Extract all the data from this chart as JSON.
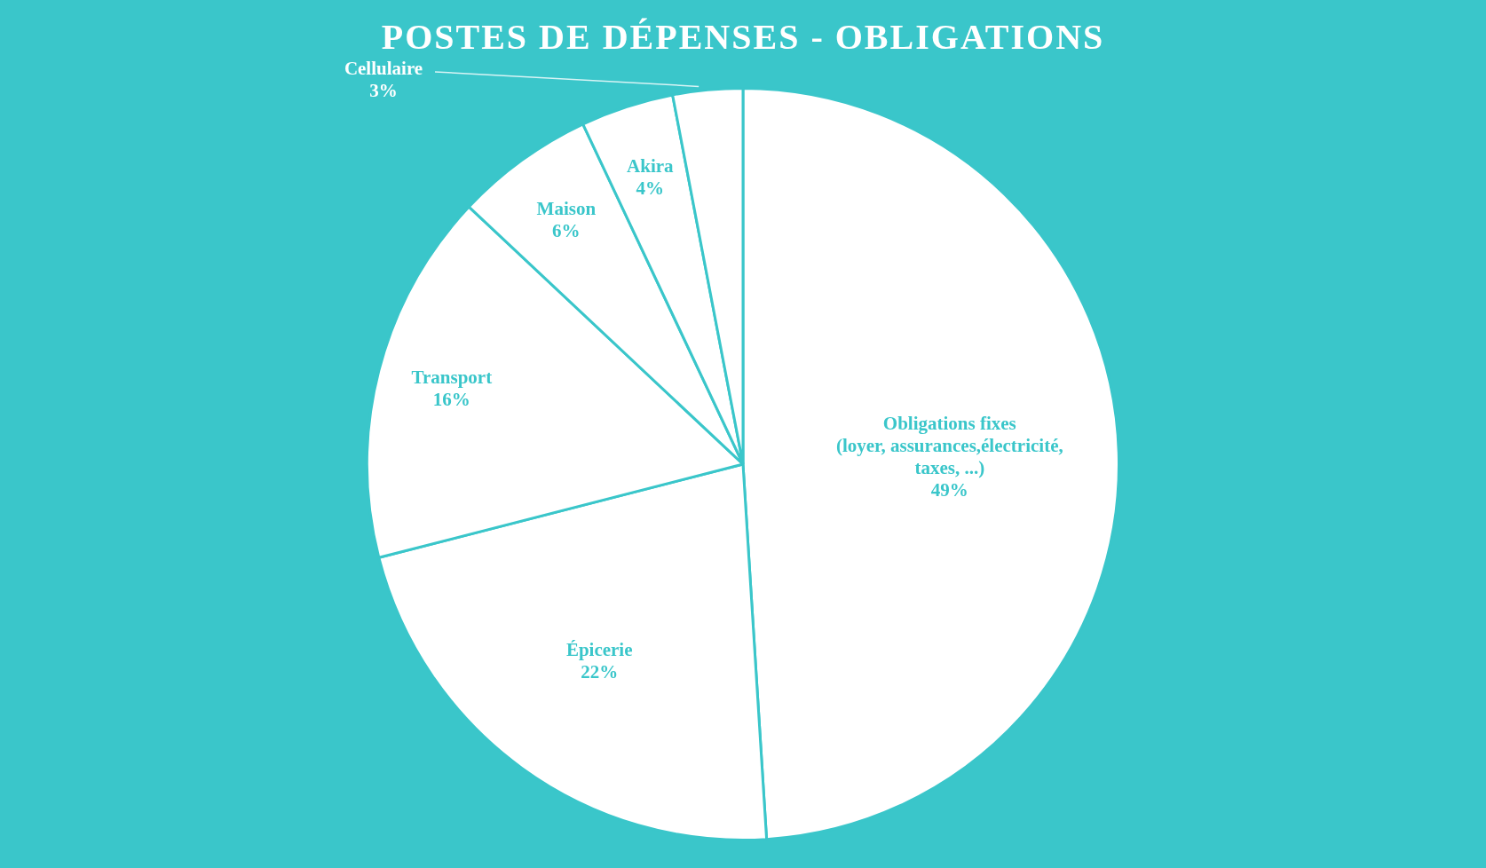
{
  "chart_data": {
    "type": "pie",
    "title": "POSTES DE DÉPENSES - OBLIGATIONS",
    "categories": [
      "Obligations fixes\n(loyer, assurances,électricité,\ntaxes, ...)",
      "Épicerie",
      "Transport",
      "Maison",
      "Akira",
      "Cellulaire"
    ],
    "values": [
      49,
      22,
      16,
      6,
      4,
      3
    ],
    "colors": [
      "#ffffff",
      "#ffffff",
      "#ffffff",
      "#ffffff",
      "#ffffff",
      "#ffffff"
    ],
    "value_labels": [
      "49%",
      "22%",
      "16%",
      "6%",
      "4%",
      "3%"
    ],
    "legend": false
  }
}
